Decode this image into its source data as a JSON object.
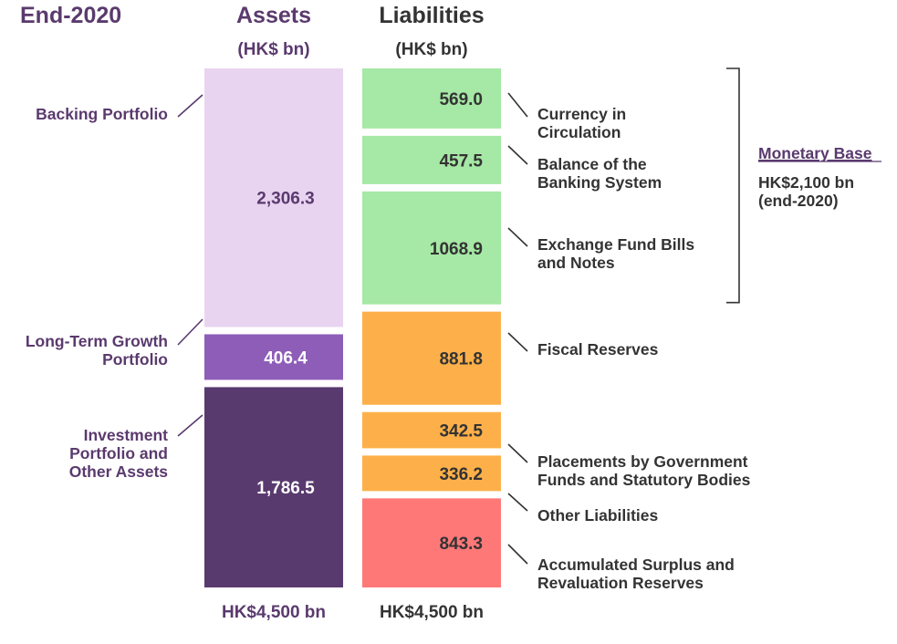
{
  "chart_data": {
    "type": "stacked-bar",
    "title": "End-2020",
    "unit": "(HK$ bn)",
    "colors": {
      "backing": "#e8d4f0",
      "growth": "#8e5db8",
      "investment": "#593a6f",
      "monetary": "#a6e8a5",
      "orange": "#fdb04a",
      "surplus": "#fe7878",
      "purple_text": "#5a3a6e",
      "dark_text": "#333333"
    },
    "assets": {
      "header": "Assets",
      "unit": "(HK$ bn)",
      "total": "HK$4,500 bn",
      "segments": [
        {
          "label_lines": [
            "Backing Portfolio"
          ],
          "value": 2306.3,
          "display": "2,306.3",
          "color_key": "backing",
          "text_color": "#5a3a6e"
        },
        {
          "label_lines": [
            "Long-Term Growth",
            "Portfolio"
          ],
          "value": 406.4,
          "display": "406.4",
          "color_key": "growth",
          "text_color": "#ffffff"
        },
        {
          "label_lines": [
            "Investment",
            "Portfolio and",
            "Other Assets"
          ],
          "value": 1786.5,
          "display": "1,786.5",
          "color_key": "investment",
          "text_color": "#ffffff"
        }
      ]
    },
    "liabilities": {
      "header": "Liabilities",
      "unit": "(HK$ bn)",
      "total": "HK$4,500 bn",
      "segments": [
        {
          "label_lines": [
            "Currency in",
            "Circulation"
          ],
          "value": 569.0,
          "display": "569.0",
          "color_key": "monetary"
        },
        {
          "label_lines": [
            "Balance of the",
            "Banking System"
          ],
          "value": 457.5,
          "display": "457.5",
          "color_key": "monetary"
        },
        {
          "label_lines": [
            "Exchange Fund Bills",
            "and Notes"
          ],
          "value": 1068.9,
          "display": "1068.9",
          "color_key": "monetary"
        },
        {
          "label_lines": [
            "Fiscal Reserves"
          ],
          "value": 881.8,
          "display": "881.8",
          "color_key": "orange"
        },
        {
          "label_lines": [
            "Placements by Government",
            "Funds and Statutory Bodies"
          ],
          "value": 342.5,
          "display": "342.5",
          "color_key": "orange"
        },
        {
          "label_lines": [
            "Other Liabilities"
          ],
          "value": 336.2,
          "display": "336.2",
          "color_key": "orange"
        },
        {
          "label_lines": [
            "Accumulated Surplus and",
            "Revaluation Reserves"
          ],
          "value": 843.3,
          "display": "843.3",
          "color_key": "surplus"
        }
      ]
    },
    "monetary_base": {
      "title": "Monetary Base",
      "lines": [
        "HK$2,100 bn",
        "(end-2020)"
      ],
      "covers_segments": 3
    }
  }
}
